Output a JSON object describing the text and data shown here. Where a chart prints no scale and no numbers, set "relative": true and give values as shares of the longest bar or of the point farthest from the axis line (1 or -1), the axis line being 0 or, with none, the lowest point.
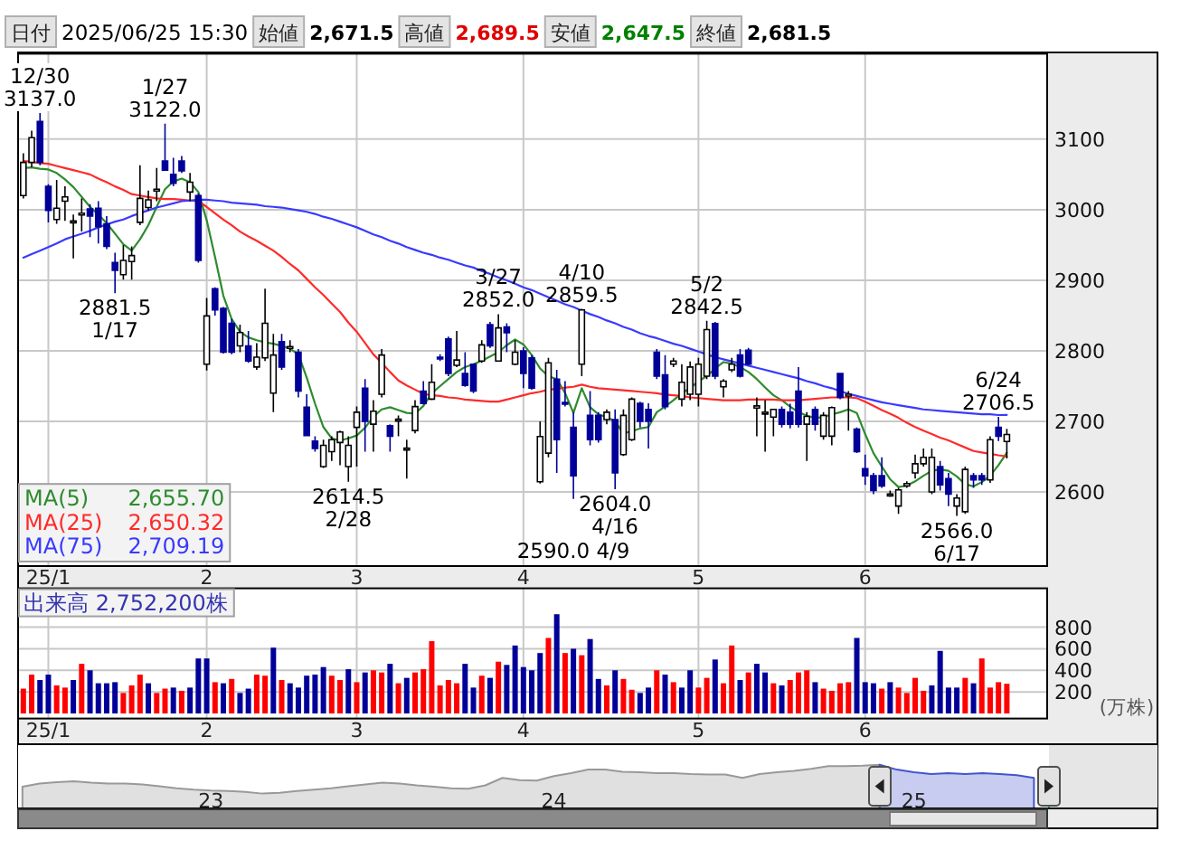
{
  "chart_data": [
    {
      "type": "candlestick",
      "categories": [
        null,
        null,
        null,
        "25/1",
        null,
        null,
        null,
        null,
        null,
        null,
        null,
        null,
        null,
        null,
        null,
        null,
        null,
        null,
        null,
        null,
        null,
        null,
        "2",
        null,
        null,
        null,
        null,
        null,
        null,
        null,
        null,
        null,
        null,
        null,
        null,
        null,
        null,
        null,
        null,
        null,
        "3",
        null,
        null,
        null,
        null,
        null,
        null,
        null,
        null,
        null,
        null,
        null,
        null,
        null,
        null,
        null,
        null,
        null,
        null,
        null,
        "4",
        null,
        null,
        null,
        null,
        null,
        null,
        null,
        null,
        null,
        null,
        null,
        null,
        null,
        null,
        null,
        null,
        null,
        null,
        null,
        null,
        "5",
        null,
        null,
        null,
        null,
        null,
        null,
        null,
        null,
        null,
        null,
        null,
        null,
        null,
        null,
        null,
        null,
        null,
        null,
        null,
        "6",
        null,
        null,
        null,
        null,
        null,
        null,
        null,
        null,
        null,
        null,
        null,
        null,
        null,
        null,
        null,
        null,
        null
      ],
      "ohlc": [
        [
          3020,
          3080,
          3016,
          3067
        ],
        [
          3067,
          3112,
          3060,
          3102
        ],
        [
          3125,
          3137,
          3063,
          3067
        ],
        [
          3033,
          3036,
          2982,
          2999
        ],
        [
          2986,
          3042,
          2980,
          3002
        ],
        [
          3012,
          3033,
          2984,
          3018
        ],
        [
          2984,
          2993,
          2931,
          2984
        ],
        [
          2995,
          3016,
          2969,
          2995
        ],
        [
          3001,
          3008,
          2961,
          2991
        ],
        [
          3002,
          3012,
          2952,
          2976
        ],
        [
          2980,
          2991,
          2944,
          2948
        ],
        [
          2925,
          2939,
          2881.5,
          2914
        ],
        [
          2908,
          2950,
          2901,
          2928
        ],
        [
          2926.5,
          2948,
          2901,
          2935
        ],
        [
          2982,
          3063,
          2978,
          3016
        ],
        [
          3003,
          3027,
          2999,
          3014
        ],
        [
          3029,
          3059,
          3012,
          3029
        ],
        [
          3069,
          3122,
          3055,
          3056
        ],
        [
          3050,
          3073.5,
          3033,
          3037.5
        ],
        [
          3069,
          3076,
          3052,
          3055
        ],
        [
          3025,
          3052,
          3012,
          3039
        ],
        [
          3020,
          3023,
          2925,
          2928
        ],
        [
          2781,
          2875,
          2772,
          2849.5
        ],
        [
          2888,
          2890,
          2850,
          2858
        ],
        [
          2860,
          2862,
          2796,
          2798
        ],
        [
          2839,
          2845,
          2795,
          2798
        ],
        [
          2807,
          2837,
          2798,
          2826
        ],
        [
          2807,
          2828,
          2783,
          2785.5
        ],
        [
          2777,
          2811,
          2773,
          2791
        ],
        [
          2790,
          2888,
          2785.5,
          2839
        ],
        [
          2740,
          2824,
          2713,
          2794
        ],
        [
          2813,
          2824,
          2773,
          2777
        ],
        [
          2806,
          2815,
          2798,
          2806
        ],
        [
          2798,
          2802.5,
          2734,
          2743
        ],
        [
          2720,
          2738.5,
          2679,
          2680
        ],
        [
          2672,
          2679,
          2657,
          2661.5
        ],
        [
          2636,
          2674,
          2634,
          2666
        ],
        [
          2657,
          2679,
          2644,
          2674
        ],
        [
          2670,
          2687,
          2638,
          2685
        ],
        [
          2636,
          2679,
          2614.5,
          2666
        ],
        [
          2691.5,
          2721,
          2636,
          2713
        ],
        [
          2747,
          2760,
          2657,
          2700
        ],
        [
          2696,
          2730,
          2657,
          2714.5
        ],
        [
          2738.5,
          2802.5,
          2734,
          2794
        ],
        [
          2694,
          2696,
          2657,
          2679
        ],
        [
          2702.5,
          2708.5,
          2679,
          2703
        ],
        [
          2661.5,
          2674,
          2619,
          2662
        ],
        [
          2687,
          2730,
          2683,
          2721
        ],
        [
          2743,
          2757,
          2724,
          2725.5
        ],
        [
          2731.5,
          2781,
          2730,
          2755.5
        ],
        [
          2791,
          2795,
          2785.5,
          2790
        ],
        [
          2817,
          2820,
          2764,
          2768
        ],
        [
          2779.5,
          2828,
          2777,
          2787
        ],
        [
          2768,
          2798,
          2749,
          2751
        ],
        [
          2781,
          2782,
          2740,
          2743
        ],
        [
          2785.5,
          2815,
          2783,
          2808.5
        ],
        [
          2837,
          2841,
          2804,
          2807
        ],
        [
          2785.5,
          2852,
          2785,
          2832.5
        ],
        [
          2834,
          2839,
          2798,
          2825.5
        ],
        [
          2781,
          2815,
          2779.5,
          2798
        ],
        [
          2800,
          2805,
          2747,
          2768
        ],
        [
          2790,
          2794,
          2745,
          2747
        ],
        [
          2614.5,
          2700,
          2612,
          2678.5
        ],
        [
          2655,
          2790,
          2649,
          2783
        ],
        [
          2760,
          2773,
          2627,
          2674
        ],
        [
          2727,
          2757,
          2721,
          2726
        ],
        [
          2691.5,
          2713,
          2590,
          2623
        ],
        [
          2781,
          2859.5,
          2764,
          2858
        ],
        [
          2708.5,
          2743,
          2666,
          2674
        ],
        [
          2708.5,
          2713,
          2670,
          2674
        ],
        [
          2702.5,
          2717,
          2696,
          2713
        ],
        [
          2702.5,
          2717,
          2604,
          2627
        ],
        [
          2653,
          2717,
          2651,
          2708.5
        ],
        [
          2674,
          2734,
          2672,
          2731.5
        ],
        [
          2725.5,
          2728,
          2691.5,
          2700
        ],
        [
          2717,
          2725.5,
          2661.5,
          2700
        ],
        [
          2798,
          2802.5,
          2760,
          2764
        ],
        [
          2766,
          2794,
          2717,
          2721
        ],
        [
          2781,
          2790,
          2777,
          2785.5
        ],
        [
          2731.5,
          2781,
          2721,
          2755.5
        ],
        [
          2738.5,
          2785,
          2730,
          2777
        ],
        [
          2738.5,
          2790,
          2721,
          2781
        ],
        [
          2764,
          2842.5,
          2760,
          2830
        ],
        [
          2838.5,
          2841,
          2760,
          2764
        ],
        [
          2749,
          2760,
          2734,
          2757
        ],
        [
          2773,
          2790,
          2770,
          2781
        ],
        [
          2794,
          2802.5,
          2762,
          2764
        ],
        [
          2801,
          2804,
          2779.5,
          2781
        ],
        [
          2719,
          2734,
          2679,
          2722
        ],
        [
          2712,
          2730,
          2657,
          2713
        ],
        [
          2706,
          2717,
          2679,
          2717
        ],
        [
          2717,
          2721,
          2691.5,
          2696
        ],
        [
          2713,
          2725,
          2690,
          2696
        ],
        [
          2743,
          2777,
          2691.5,
          2696
        ],
        [
          2696,
          2713,
          2644,
          2707
        ],
        [
          2717,
          2721,
          2687,
          2696
        ],
        [
          2679,
          2713,
          2674,
          2708.5
        ],
        [
          2679,
          2721,
          2666,
          2719.5
        ],
        [
          2768,
          2768,
          2731.5,
          2734
        ],
        [
          2738.5,
          2743,
          2687,
          2738.5
        ],
        [
          2689,
          2691.5,
          2655,
          2657
        ],
        [
          2633,
          2653,
          2610,
          2623
        ],
        [
          2623,
          2627,
          2597,
          2602
        ],
        [
          2623,
          2649,
          2606,
          2608.5
        ],
        [
          2597,
          2602,
          2593,
          2597
        ],
        [
          2580,
          2606,
          2569,
          2603
        ],
        [
          2608.5,
          2615,
          2606,
          2612
        ],
        [
          2627,
          2653,
          2619,
          2640
        ],
        [
          2640,
          2661.5,
          2636,
          2649
        ],
        [
          2600,
          2661.5,
          2597,
          2649
        ],
        [
          2636,
          2644,
          2602,
          2610
        ],
        [
          2619,
          2627,
          2580,
          2597
        ],
        [
          2580,
          2597,
          2566,
          2591.5
        ],
        [
          2572,
          2636,
          2569,
          2632
        ],
        [
          2623,
          2627,
          2606,
          2617
        ],
        [
          2623,
          2627,
          2610,
          2617
        ],
        [
          2617,
          2679,
          2613,
          2674
        ],
        [
          2691.5,
          2706.5,
          2672,
          2679
        ],
        [
          2671.5,
          2689.5,
          2647.5,
          2681.5
        ]
      ],
      "colors": [
        "#ffffff",
        "#ffffff",
        "#000099",
        "#000099",
        "#ffffff",
        "#ffffff",
        "#ffffff",
        "#ffffff",
        "#000099",
        "#000099",
        "#000099",
        "#000099",
        "#ffffff",
        "#ffffff",
        "#ffffff",
        "#ffffff",
        "#ffffff",
        "#000099",
        "#000099",
        "#000099",
        "#ffffff",
        "#000099",
        "#ffffff",
        "#000099",
        "#000099",
        "#000099",
        "#ffffff",
        "#000099",
        "#ffffff",
        "#ffffff",
        "#ffffff",
        "#000099",
        "#ffffff",
        "#000099",
        "#000099",
        "#000099",
        "#ffffff",
        "#ffffff",
        "#ffffff",
        "#ffffff",
        "#ffffff",
        "#000099",
        "#ffffff",
        "#ffffff",
        "#000099",
        "#ffffff",
        "#ffffff",
        "#ffffff",
        "#000099",
        "#ffffff",
        "#000099",
        "#000099",
        "#ffffff",
        "#000099",
        "#000099",
        "#ffffff",
        "#000099",
        "#ffffff",
        "#000099",
        "#ffffff",
        "#000099",
        "#000099",
        "#ffffff",
        "#ffffff",
        "#000099",
        "#000099",
        "#000099",
        "#ffffff",
        "#000099",
        "#000099",
        "#ffffff",
        "#000099",
        "#ffffff",
        "#ffffff",
        "#000099",
        "#000099",
        "#000099",
        "#000099",
        "#ffffff",
        "#ffffff",
        "#ffffff",
        "#ffffff",
        "#ffffff",
        "#000099",
        "#ffffff",
        "#ffffff",
        "#000099",
        "#000099",
        "#ffffff",
        "#ffffff",
        "#ffffff",
        "#000099",
        "#000099",
        "#000099",
        "#ffffff",
        "#000099",
        "#ffffff",
        "#ffffff",
        "#000099",
        "#ffffff",
        "#000099",
        "#000099",
        "#000099",
        "#000099",
        "#ffffff",
        "#ffffff",
        "#ffffff",
        "#ffffff",
        "#ffffff",
        "#ffffff",
        "#000099",
        "#000099",
        "#ffffff",
        "#ffffff",
        "#000099",
        "#000099",
        "#ffffff",
        "#000099",
        "#ffffff"
      ],
      "series": [
        {
          "name": "MA(5)",
          "type": "line",
          "color": "#2e8b2e",
          "values": [
            3059,
            3060,
            3058,
            3057,
            3052,
            3043,
            3032,
            3018,
            3004,
            2993,
            2981,
            2966,
            2951,
            2942,
            2958,
            2978,
            3004,
            3029,
            3040,
            3044,
            3039,
            3025,
            2985,
            2933,
            2878,
            2845,
            2827,
            2819,
            2815,
            2812,
            2810,
            2807,
            2803,
            2795,
            2762,
            2725,
            2692,
            2676,
            2673,
            2676,
            2680,
            2691,
            2707,
            2717,
            2720,
            2716,
            2712,
            2711,
            2722,
            2740,
            2750,
            2760,
            2770,
            2777,
            2781,
            2786,
            2792,
            2798,
            2808,
            2816,
            2809,
            2794,
            2775,
            2764,
            2760,
            2740,
            2712,
            2747,
            2720,
            2710,
            2706,
            2700,
            2683,
            2686,
            2690,
            2692,
            2713,
            2721,
            2730,
            2740,
            2747,
            2757,
            2764,
            2775,
            2784,
            2782,
            2777,
            2770,
            2760,
            2748,
            2737,
            2730,
            2721,
            2713,
            2708,
            2705,
            2706,
            2710,
            2713,
            2717,
            2712,
            2682,
            2655,
            2636,
            2618,
            2607,
            2609,
            2615,
            2623,
            2630,
            2632,
            2630,
            2622,
            2611,
            2608,
            2614,
            2623,
            2638,
            2655.7
          ]
        },
        {
          "name": "MA(25)",
          "type": "line",
          "color": "#ff2a2a",
          "values": [
            3069,
            3068,
            3066,
            3065,
            3062,
            3059,
            3056,
            3053,
            3050,
            3044,
            3039,
            3033,
            3028,
            3022,
            3020,
            3018,
            3016,
            3015,
            3015,
            3014,
            3013,
            3012,
            3004,
            2995,
            2986,
            2978,
            2969,
            2962,
            2956,
            2949,
            2942,
            2933,
            2923,
            2914,
            2902,
            2890,
            2879,
            2867,
            2855,
            2840,
            2827,
            2811,
            2795,
            2783,
            2770,
            2758,
            2751,
            2745,
            2739,
            2737,
            2736,
            2734,
            2733,
            2731,
            2730,
            2729,
            2728,
            2728,
            2731,
            2734,
            2737,
            2740,
            2742,
            2745,
            2746,
            2748,
            2749,
            2752,
            2749,
            2747,
            2746,
            2745,
            2744,
            2743,
            2742,
            2741,
            2740,
            2738,
            2737,
            2736,
            2734,
            2733,
            2732,
            2731,
            2730,
            2730,
            2730,
            2731,
            2731,
            2731,
            2731,
            2730,
            2730,
            2730,
            2731,
            2732,
            2733,
            2734,
            2734,
            2734,
            2733,
            2728,
            2722,
            2716,
            2711,
            2705,
            2698,
            2692,
            2687,
            2682,
            2677,
            2673,
            2668,
            2663,
            2658,
            2656,
            2654,
            2652,
            2650.32
          ]
        },
        {
          "name": "MA(75)",
          "type": "line",
          "color": "#3a3aff",
          "values": [
            2932,
            2937,
            2942,
            2947,
            2952,
            2958,
            2962,
            2966,
            2970,
            2975,
            2979,
            2983,
            2986,
            2991,
            2995,
            2999,
            3003,
            3006,
            3009,
            3012,
            3013,
            3014,
            3014,
            3013,
            3012,
            3010,
            3009,
            3008,
            3007,
            3005,
            3004,
            3003,
            3001,
            2999,
            2997,
            2994,
            2990,
            2987,
            2983,
            2979,
            2975,
            2970,
            2965,
            2961,
            2956,
            2952,
            2947,
            2943,
            2939,
            2936,
            2932,
            2929,
            2925,
            2921,
            2918,
            2913,
            2909,
            2904,
            2900,
            2895,
            2890,
            2886,
            2881,
            2876,
            2871,
            2866,
            2862,
            2857,
            2852,
            2848,
            2843,
            2839,
            2834,
            2830,
            2825,
            2821,
            2818,
            2814,
            2810,
            2807,
            2803,
            2799,
            2795,
            2791,
            2788,
            2785,
            2782,
            2779,
            2776,
            2773,
            2770,
            2767,
            2764,
            2761,
            2757,
            2754,
            2750,
            2747,
            2743,
            2739,
            2736,
            2733,
            2730,
            2727,
            2725,
            2723,
            2721,
            2719,
            2717,
            2716,
            2715,
            2714,
            2713,
            2712,
            2711,
            2710,
            2710,
            2709,
            2709.19
          ]
        }
      ],
      "ylim": [
        2495,
        3221
      ],
      "yticks": [
        2600,
        2700,
        2800,
        2900,
        3000,
        3100
      ],
      "grid": true,
      "legend": "bottom left",
      "annotations": [
        "日付",
        "2025/06/25 15:30",
        "始値",
        "2,671.5",
        "高値",
        "2,689.5",
        "安値",
        "2,647.5",
        "終値",
        "2,681.5",
        {
          "text": "12/30\n3137.0",
          "y": 3137.0
        },
        {
          "text": "1/27\n3122.0",
          "y": 3122.0
        },
        {
          "text": "2881.5\n1/17",
          "y": 2881.5
        },
        {
          "text": "2614.5\n2/28",
          "y": 2614.5
        },
        {
          "text": "3/27\n2852.0",
          "y": 2852.0
        },
        {
          "text": "4/10\n2859.5",
          "y": 2859.5
        },
        {
          "text": "2590.0\n4/9",
          "y": 2590.0
        },
        {
          "text": "2604.0\n4/16",
          "y": 2604.0
        },
        {
          "text": "5/2\n2842.5",
          "y": 2842.5
        },
        {
          "text": "6/24\n2706.5",
          "y": 2706.5
        },
        {
          "text": "2566.0\n6/17",
          "y": 2566.0
        },
        "2,655.70",
        "2,650.32",
        "2,709.19"
      ]
    },
    {
      "type": "bar",
      "title": "出来高 2,752,200株",
      "ylabel": "(万株)",
      "categories": [
        null,
        null,
        null,
        "25/1",
        null,
        null,
        null,
        null,
        null,
        null,
        null,
        null,
        null,
        null,
        null,
        null,
        null,
        null,
        null,
        null,
        null,
        null,
        "2",
        null,
        null,
        null,
        null,
        null,
        null,
        null,
        null,
        null,
        null,
        null,
        null,
        null,
        null,
        null,
        null,
        null,
        "3",
        null,
        null,
        null,
        null,
        null,
        null,
        null,
        null,
        null,
        null,
        null,
        null,
        null,
        null,
        null,
        null,
        null,
        null,
        null,
        "4",
        null,
        null,
        null,
        null,
        null,
        null,
        null,
        null,
        null,
        null,
        null,
        null,
        null,
        null,
        null,
        null,
        null,
        null,
        null,
        null,
        "5",
        null,
        null,
        null,
        null,
        null,
        null,
        null,
        null,
        null,
        null,
        null,
        null,
        null,
        null,
        null,
        null,
        null,
        null,
        null,
        "6",
        null,
        null,
        null,
        null,
        null,
        null,
        null,
        null,
        null,
        null,
        null,
        null,
        null,
        null,
        null,
        null,
        null
      ],
      "values": [
        230,
        360,
        310,
        360,
        260,
        240,
        310,
        460,
        400,
        280,
        280,
        290,
        190,
        260,
        360,
        280,
        190,
        230,
        240,
        210,
        240,
        510,
        510,
        290,
        280,
        320,
        190,
        230,
        360,
        350,
        610,
        310,
        280,
        240,
        350,
        360,
        430,
        350,
        310,
        410,
        290,
        380,
        400,
        380,
        460,
        280,
        330,
        380,
        410,
        670,
        260,
        310,
        280,
        460,
        240,
        350,
        330,
        480,
        450,
        630,
        430,
        400,
        560,
        700,
        920,
        560,
        600,
        540,
        690,
        320,
        260,
        400,
        320,
        220,
        190,
        240,
        400,
        360,
        290,
        240,
        400,
        240,
        330,
        500,
        280,
        630,
        310,
        380,
        460,
        380,
        280,
        260,
        310,
        380,
        400,
        290,
        230,
        210,
        280,
        290,
        700,
        290,
        280,
        230,
        290,
        240,
        190,
        330,
        210,
        260,
        580,
        240,
        240,
        330,
        280,
        510,
        240,
        290,
        275.22
      ],
      "colors": [
        "#ff0000",
        "#ff0000",
        "#000099",
        "#000099",
        "#ff0000",
        "#ff0000",
        "#000099",
        "#ff0000",
        "#000099",
        "#000099",
        "#000099",
        "#000099",
        "#ff0000",
        "#ff0000",
        "#ff0000",
        "#000099",
        "#ff0000",
        "#ff0000",
        "#000099",
        "#ff0000",
        "#000099",
        "#000099",
        "#000099",
        "#ff0000",
        "#000099",
        "#ff0000",
        "#000099",
        "#000099",
        "#ff0000",
        "#ff0000",
        "#000099",
        "#ff0000",
        "#000099",
        "#000099",
        "#000099",
        "#000099",
        "#000099",
        "#ff0000",
        "#ff0000",
        "#000099",
        "#ff0000",
        "#000099",
        "#ff0000",
        "#ff0000",
        "#000099",
        "#ff0000",
        "#000099",
        "#ff0000",
        "#ff0000",
        "#ff0000",
        "#ff0000",
        "#ff0000",
        "#ff0000",
        "#000099",
        "#000099",
        "#ff0000",
        "#000099",
        "#ff0000",
        "#000099",
        "#000099",
        "#000099",
        "#000099",
        "#000099",
        "#ff0000",
        "#000099",
        "#ff0000",
        "#000099",
        "#ff0000",
        "#000099",
        "#000099",
        "#ff0000",
        "#000099",
        "#ff0000",
        "#ff0000",
        "#000099",
        "#000099",
        "#ff0000",
        "#000099",
        "#ff0000",
        "#000099",
        "#000099",
        "#ff0000",
        "#ff0000",
        "#000099",
        "#ff0000",
        "#ff0000",
        "#000099",
        "#ff0000",
        "#000099",
        "#000099",
        "#ff0000",
        "#000099",
        "#ff0000",
        "#ff0000",
        "#ff0000",
        "#000099",
        "#ff0000",
        "#ff0000",
        "#ff0000",
        "#ff0000",
        "#000099",
        "#000099",
        "#000099",
        "#ff0000",
        "#000099",
        "#ff0000",
        "#ff0000",
        "#ff0000",
        "#ff0000",
        "#000099",
        "#000099",
        "#000099",
        "#000099",
        "#ff0000",
        "#000099",
        "#ff0000",
        "#ff0000",
        "#ff0000",
        "#ff0000"
      ],
      "ylim": [
        0,
        1160
      ],
      "yticks": [
        200,
        400,
        600,
        800
      ],
      "grid": true
    },
    {
      "type": "area",
      "relative": true,
      "categories": [
        null,
        null,
        null,
        null,
        null,
        null,
        null,
        null,
        null,
        null,
        null,
        "23",
        null,
        null,
        null,
        null,
        null,
        null,
        null,
        null,
        null,
        null,
        null,
        null,
        null,
        null,
        null,
        null,
        null,
        null,
        null,
        "24",
        null,
        null,
        null,
        null,
        null,
        null,
        null,
        null,
        null,
        null,
        null,
        null,
        null,
        null,
        null,
        null,
        null,
        null,
        null,
        null,
        "25",
        null,
        null,
        null,
        null,
        null,
        null,
        null
      ],
      "series": [
        {
          "color": "#999999",
          "values": [
            0.5,
            0.57,
            0.6,
            0.62,
            0.59,
            0.57,
            0.57,
            0.55,
            0.51,
            0.46,
            0.43,
            0.41,
            0.4,
            0.38,
            0.34,
            0.36,
            0.4,
            0.43,
            0.46,
            0.51,
            0.55,
            0.59,
            0.57,
            0.53,
            0.5,
            0.46,
            0.45,
            0.53,
            0.7,
            0.65,
            0.64,
            0.74,
            0.81,
            0.89,
            0.89,
            0.84,
            0.83,
            0.81,
            0.81,
            0.79,
            0.78,
            0.78,
            0.7,
            0.79,
            0.83,
            0.86,
            0.91,
            0.97,
            0.97,
            0.98,
            1,
            null,
            null,
            null,
            null,
            null,
            null,
            null,
            null,
            null
          ]
        },
        {
          "color": "#4455cc",
          "values": [
            null,
            null,
            null,
            null,
            null,
            null,
            null,
            null,
            null,
            null,
            null,
            null,
            null,
            null,
            null,
            null,
            null,
            null,
            null,
            null,
            null,
            null,
            null,
            null,
            null,
            null,
            null,
            null,
            null,
            null,
            null,
            null,
            null,
            null,
            null,
            null,
            null,
            null,
            null,
            null,
            null,
            null,
            null,
            null,
            null,
            null,
            null,
            null,
            null,
            null,
            1,
            0.89,
            0.83,
            0.79,
            0.81,
            0.79,
            0.81,
            0.79,
            0.76,
            0.7
          ]
        }
      ]
    }
  ]
}
